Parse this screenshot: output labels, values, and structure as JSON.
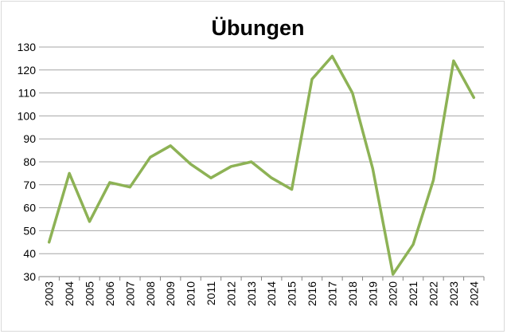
{
  "chart_data": {
    "type": "line",
    "title": "Übungen",
    "xlabel": "",
    "ylabel": "",
    "x": [
      "2003",
      "2004",
      "2005",
      "2006",
      "2007",
      "2008",
      "2009",
      "2010",
      "2011",
      "2012",
      "2013",
      "2014",
      "2015",
      "2016",
      "2017",
      "2018",
      "2019",
      "2020",
      "2021",
      "2022",
      "2023",
      "2024"
    ],
    "series": [
      {
        "values": [
          45,
          75,
          54,
          71,
          69,
          82,
          87,
          79,
          73,
          78,
          80,
          73,
          68,
          116,
          126,
          110,
          77,
          31,
          44,
          72,
          124,
          108
        ],
        "color": "#8db255"
      }
    ],
    "ylim": [
      30,
      130
    ],
    "yticks": [
      30,
      40,
      50,
      60,
      70,
      80,
      90,
      100,
      110,
      120,
      130
    ],
    "grid": true,
    "legend": "none"
  }
}
